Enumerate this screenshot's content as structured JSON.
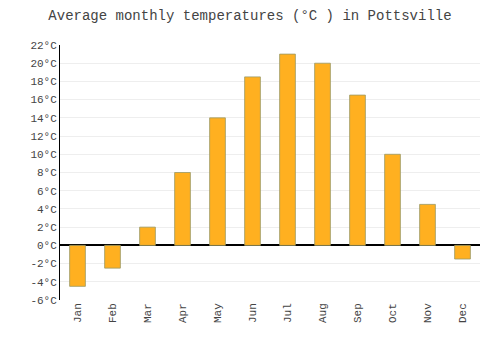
{
  "chart_data": {
    "type": "bar",
    "title": "Average monthly temperatures (°C ) in Pottsville",
    "categories": [
      "Jan",
      "Feb",
      "Mar",
      "Apr",
      "May",
      "Jun",
      "Jul",
      "Aug",
      "Sep",
      "Oct",
      "Nov",
      "Dec"
    ],
    "values": [
      -4.5,
      -2.5,
      2,
      8,
      14,
      18.5,
      21,
      20,
      16.5,
      10,
      4.5,
      -1.5
    ],
    "color": "#FFB020",
    "ylim": [
      -6,
      22
    ],
    "yticks": [
      {
        "value": -6,
        "label": "-6°C"
      },
      {
        "value": -4,
        "label": "-4°C"
      },
      {
        "value": -2,
        "label": "-2°C"
      },
      {
        "value": 0,
        "label": "0°C"
      },
      {
        "value": 2,
        "label": "2°C"
      },
      {
        "value": 4,
        "label": "4°C"
      },
      {
        "value": 6,
        "label": "6°C"
      },
      {
        "value": 8,
        "label": "8°C"
      },
      {
        "value": 10,
        "label": "10°C"
      },
      {
        "value": 12,
        "label": "12°C"
      },
      {
        "value": 14,
        "label": "14°C"
      },
      {
        "value": 16,
        "label": "16°C"
      },
      {
        "value": 18,
        "label": "18°C"
      },
      {
        "value": 20,
        "label": "20°C"
      },
      {
        "value": 22,
        "label": "22°C"
      }
    ],
    "grid": true
  }
}
